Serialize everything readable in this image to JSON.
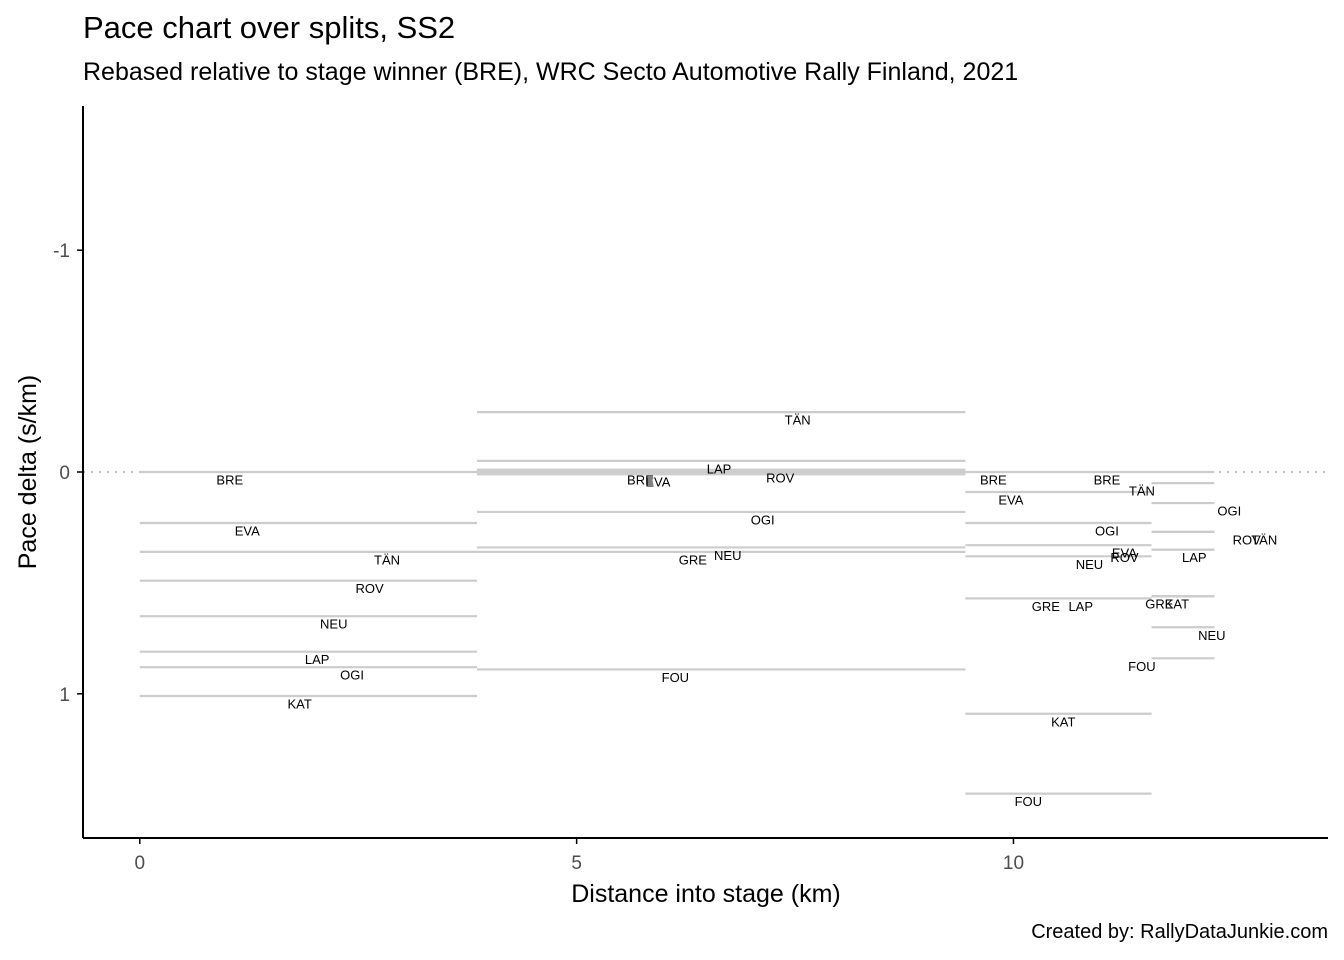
{
  "chart_data": {
    "type": "line",
    "title": "Pace chart over splits, SS2",
    "subtitle": "Rebased relative to stage winner (BRE), WRC Secto Automotive Rally Finland, 2021",
    "caption": "Created by: RallyDataJunkie.com",
    "xlabel": "Distance into stage (km)",
    "ylabel": "Pace delta (s/km)",
    "xlim": [
      -0.65,
      13.6
    ],
    "ylim": [
      1.65,
      -1.65
    ],
    "y_reversed": true,
    "xticks": [
      0,
      5,
      10
    ],
    "yticks": [
      -1,
      0,
      1
    ],
    "reference_line": 0,
    "grid": false,
    "segment_color": "#cccccc",
    "splits": [
      {
        "start": 0,
        "end": 3.86,
        "entries": [
          {
            "driver": "BRE",
            "value": 0.0,
            "label_x": 1.03
          },
          {
            "driver": "EVA",
            "value": 0.23,
            "label_x": 1.23
          },
          {
            "driver": "TÄN",
            "value": 0.36,
            "label_x": 2.83
          },
          {
            "driver": "ROV",
            "value": 0.49,
            "label_x": 2.63
          },
          {
            "driver": "NEU",
            "value": 0.65,
            "label_x": 2.22
          },
          {
            "driver": "LAP",
            "value": 0.81,
            "label_x": 2.03
          },
          {
            "driver": "OGI",
            "value": 0.88,
            "label_x": 2.43
          },
          {
            "driver": "KAT",
            "value": 1.01,
            "label_x": 1.83
          }
        ]
      },
      {
        "start": 3.86,
        "end": 9.45,
        "entries": [
          {
            "driver": "TÄN",
            "value": -0.27,
            "label_x": 7.53
          },
          {
            "driver": "LAP",
            "value": -0.05,
            "label_x": 6.63
          },
          {
            "driver": "ROV",
            "value": -0.01,
            "label_x": 7.33
          },
          {
            "driver": "BRE",
            "value": 0.0,
            "label_x": 5.73
          },
          {
            "driver": "EVA",
            "value": 0.01,
            "label_x": 5.93
          },
          {
            "driver": "OGI",
            "value": 0.18,
            "label_x": 7.13
          },
          {
            "driver": "NEU",
            "value": 0.34,
            "label_x": 6.73
          },
          {
            "driver": "GRE",
            "value": 0.36,
            "label_x": 6.33
          },
          {
            "driver": "FOU",
            "value": 0.89,
            "label_x": 6.13
          }
        ]
      },
      {
        "start": 9.45,
        "end": 11.58,
        "entries": [
          {
            "driver": "BRE",
            "value": 0.0,
            "label_x": 9.77
          },
          {
            "driver": "EVA",
            "value": 0.09,
            "label_x": 9.97
          },
          {
            "driver": "OGI",
            "value": 0.23,
            "label_x": 11.07
          },
          {
            "driver": "EVA",
            "value": 0.33,
            "label_x": 11.27
          },
          {
            "driver": "NEU",
            "value": 0.38,
            "label_x": 10.87
          },
          {
            "driver": "GRE",
            "value": 0.57,
            "label_x": 10.37
          },
          {
            "driver": "LAP",
            "value": 0.57,
            "label_x": 10.77
          },
          {
            "driver": "KAT",
            "value": 1.09,
            "label_x": 10.57
          },
          {
            "driver": "FOU",
            "value": 1.45,
            "label_x": 10.17
          }
        ]
      },
      {
        "start": 11.58,
        "end": 12.3,
        "entries": [
          {
            "driver": "BRE",
            "value": 0.0,
            "label_x": 11.07
          },
          {
            "driver": "TÄN",
            "value": 0.05,
            "label_x": 11.47
          },
          {
            "driver": "OGI",
            "value": 0.14,
            "label_x": 12.47
          },
          {
            "driver": "ROV",
            "value": 0.27,
            "label_x": 12.67
          },
          {
            "driver": "TÄN",
            "value": 0.27,
            "label_x": 12.87
          },
          {
            "driver": "ROV",
            "value": 0.35,
            "label_x": 11.27
          },
          {
            "driver": "LAP",
            "value": 0.35,
            "label_x": 12.07
          },
          {
            "driver": "GRE",
            "value": 0.56,
            "label_x": 11.67
          },
          {
            "driver": "KAT",
            "value": 0.56,
            "label_x": 11.87
          },
          {
            "driver": "NEU",
            "value": 0.7,
            "label_x": 12.27
          },
          {
            "driver": "FOU",
            "value": 0.84,
            "label_x": 11.47
          }
        ]
      }
    ]
  }
}
